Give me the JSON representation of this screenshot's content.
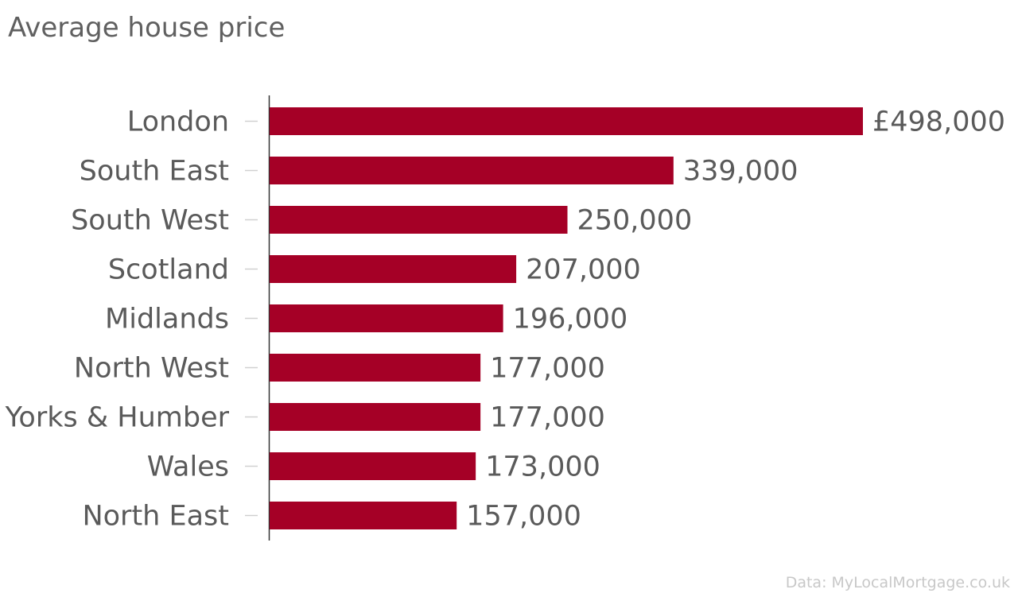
{
  "chart_data": {
    "type": "bar",
    "orientation": "horizontal",
    "title": "Average house price",
    "categories": [
      "London",
      "South East",
      "South West",
      "Scotland",
      "Midlands",
      "North West",
      "Yorks & Humber",
      "Wales",
      "North East"
    ],
    "values": [
      498000,
      339000,
      250000,
      207000,
      196000,
      177000,
      177000,
      173000,
      157000
    ],
    "value_labels": [
      "£498,000",
      "339,000",
      "250,000",
      "207,000",
      "196,000",
      "177,000",
      "177,000",
      "173,000",
      "157,000"
    ],
    "xlim": [
      0,
      498000
    ],
    "grid": false,
    "bar_color": "#a50026",
    "source": "Data: MyLocalMortgage.co.uk"
  }
}
